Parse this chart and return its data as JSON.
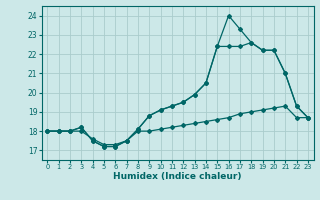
{
  "xlabel": "Humidex (Indice chaleur)",
  "bg_color": "#cce8e8",
  "grid_color": "#aacccc",
  "line_color": "#006666",
  "xlim": [
    -0.5,
    23.5
  ],
  "ylim": [
    16.5,
    24.5
  ],
  "yticks": [
    17,
    18,
    19,
    20,
    21,
    22,
    23,
    24
  ],
  "xticks": [
    0,
    1,
    2,
    3,
    4,
    5,
    6,
    7,
    8,
    9,
    10,
    11,
    12,
    13,
    14,
    15,
    16,
    17,
    18,
    19,
    20,
    21,
    22,
    23
  ],
  "line1_x": [
    0,
    1,
    2,
    3,
    4,
    5,
    6,
    7,
    8,
    9,
    10,
    11,
    12,
    13,
    14,
    15,
    16,
    17,
    18,
    19,
    20,
    21,
    22,
    23
  ],
  "line1_y": [
    18.0,
    18.0,
    18.0,
    18.0,
    17.6,
    17.3,
    17.3,
    17.5,
    18.0,
    18.0,
    18.1,
    18.2,
    18.3,
    18.4,
    18.5,
    18.6,
    18.7,
    18.9,
    19.0,
    19.1,
    19.2,
    19.3,
    18.7,
    18.7
  ],
  "line2_x": [
    0,
    1,
    2,
    3,
    4,
    5,
    6,
    7,
    8,
    9,
    10,
    11,
    12,
    13,
    14,
    15,
    16,
    17,
    18,
    19,
    20,
    21,
    22,
    23
  ],
  "line2_y": [
    18.0,
    18.0,
    18.0,
    18.2,
    17.5,
    17.2,
    17.2,
    17.5,
    18.1,
    18.8,
    19.1,
    19.3,
    19.5,
    19.9,
    20.5,
    22.4,
    22.4,
    22.4,
    22.6,
    22.2,
    22.2,
    21.0,
    19.3,
    18.7
  ],
  "line3_x": [
    0,
    1,
    2,
    3,
    4,
    5,
    6,
    7,
    8,
    9,
    10,
    11,
    12,
    13,
    14,
    15,
    16,
    17,
    18,
    19,
    20,
    21,
    22,
    23
  ],
  "line3_y": [
    18.0,
    18.0,
    18.0,
    18.2,
    17.5,
    17.2,
    17.2,
    17.5,
    18.1,
    18.8,
    19.1,
    19.3,
    19.5,
    19.9,
    20.5,
    22.4,
    24.0,
    23.3,
    22.6,
    22.2,
    22.2,
    21.0,
    19.3,
    18.7
  ]
}
